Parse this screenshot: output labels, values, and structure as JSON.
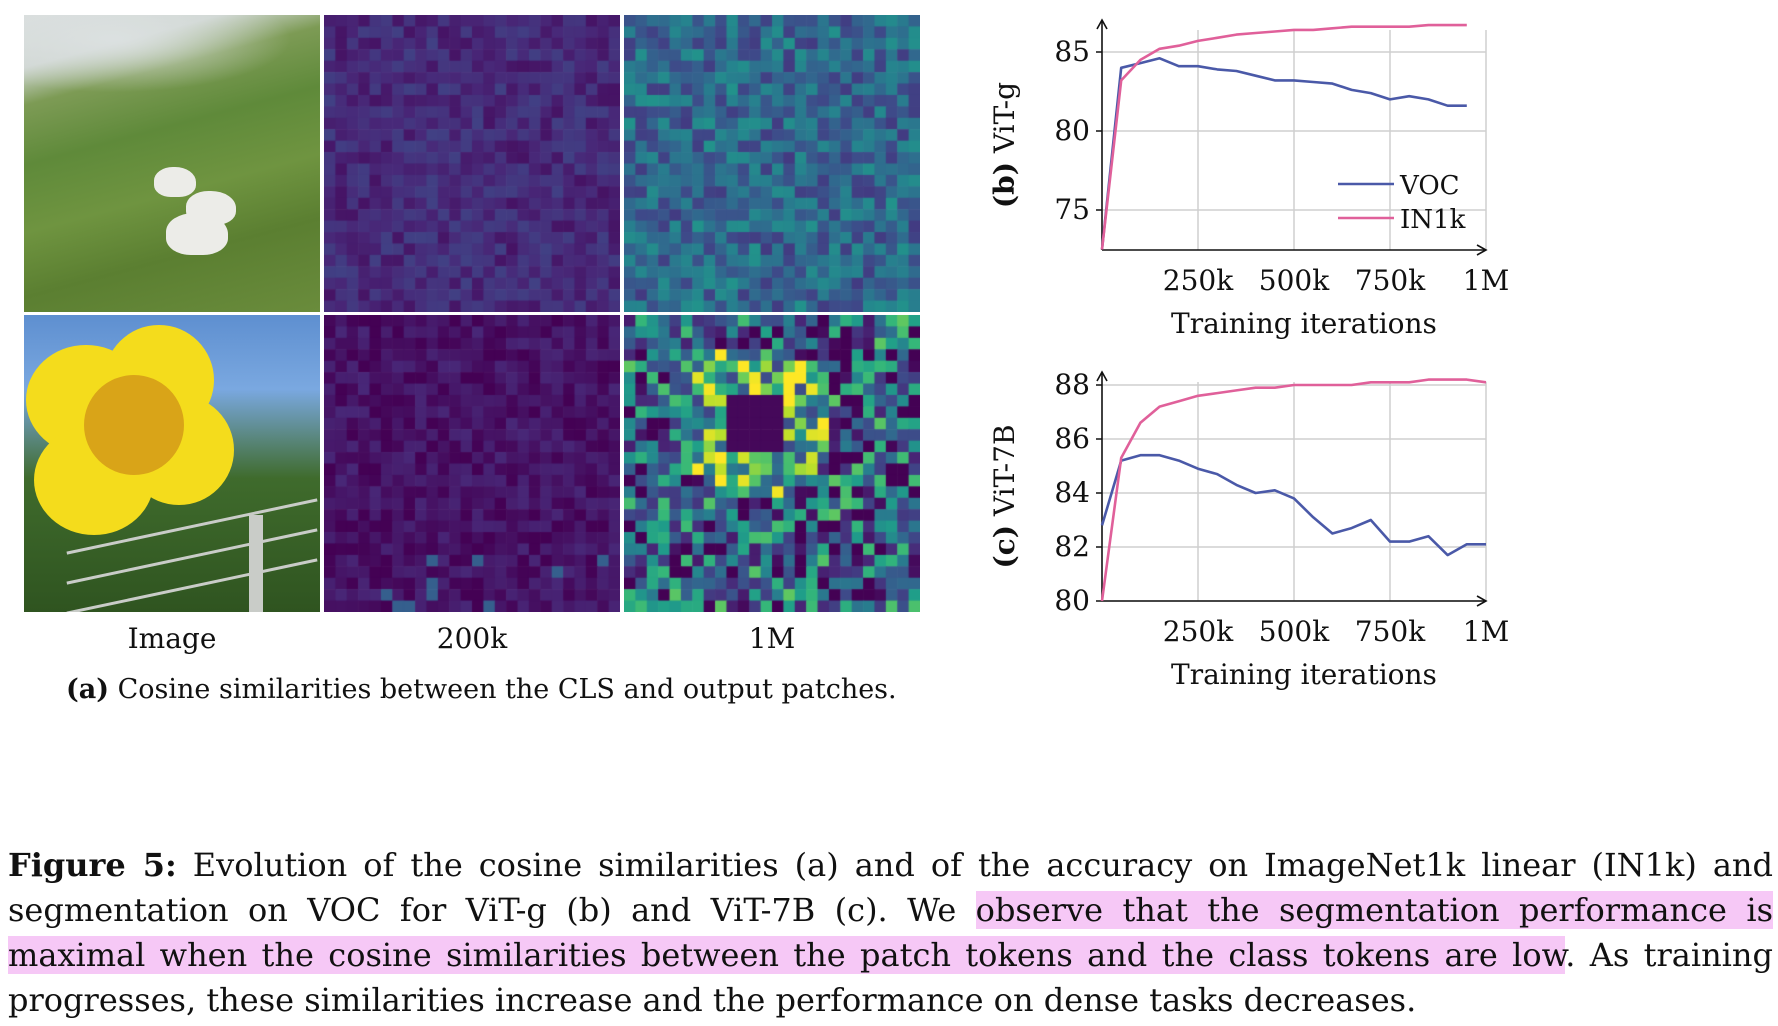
{
  "panel_a": {
    "column_labels": [
      "Image",
      "200k",
      "1M"
    ],
    "caption_label": "(a)",
    "caption_text": " Cosine similarities between the CLS and output patches."
  },
  "chart_data": [
    {
      "type": "line",
      "panel": "(b)",
      "ylabel": "ViT-g",
      "xlabel": "Training iterations",
      "x_ticks": [
        "250k",
        "500k",
        "750k",
        "1M"
      ],
      "y_ticks": [
        75,
        80,
        85
      ],
      "xlim": [
        0,
        1000000
      ],
      "ylim": [
        72.5,
        87.5
      ],
      "grid": true,
      "legend_position": "bottom-right",
      "series": [
        {
          "name": "VOC",
          "color": "#4a59a8",
          "x": [
            0,
            50000,
            100000,
            150000,
            200000,
            250000,
            300000,
            350000,
            400000,
            450000,
            500000,
            550000,
            600000,
            650000,
            700000,
            750000,
            800000,
            850000,
            900000,
            950000
          ],
          "y": [
            72.5,
            84.0,
            84.3,
            84.6,
            84.1,
            84.1,
            83.9,
            83.8,
            83.5,
            83.2,
            83.2,
            83.1,
            83.0,
            82.6,
            82.4,
            82.0,
            82.2,
            82.0,
            81.6,
            81.6
          ]
        },
        {
          "name": "IN1k",
          "color": "#e0609a",
          "x": [
            0,
            50000,
            100000,
            150000,
            200000,
            250000,
            300000,
            350000,
            400000,
            450000,
            500000,
            550000,
            600000,
            650000,
            700000,
            750000,
            800000,
            850000,
            900000,
            950000
          ],
          "y": [
            72.5,
            83.2,
            84.5,
            85.2,
            85.4,
            85.7,
            85.9,
            86.1,
            86.2,
            86.3,
            86.4,
            86.4,
            86.5,
            86.6,
            86.6,
            86.6,
            86.6,
            86.7,
            86.7,
            86.7
          ]
        }
      ]
    },
    {
      "type": "line",
      "panel": "(c)",
      "ylabel": "ViT-7B",
      "xlabel": "Training iterations",
      "x_ticks": [
        "250k",
        "500k",
        "750k",
        "1M"
      ],
      "y_ticks": [
        80,
        82,
        84,
        86,
        88
      ],
      "xlim": [
        0,
        1000000
      ],
      "ylim": [
        80,
        88.5
      ],
      "grid": true,
      "series": [
        {
          "name": "VOC",
          "color": "#4a59a8",
          "x": [
            0,
            50000,
            100000,
            150000,
            200000,
            250000,
            300000,
            350000,
            400000,
            450000,
            500000,
            550000,
            600000,
            650000,
            700000,
            750000,
            800000,
            850000,
            900000,
            950000,
            1000000
          ],
          "y": [
            82.8,
            85.2,
            85.4,
            85.4,
            85.2,
            84.9,
            84.7,
            84.3,
            84.0,
            84.1,
            83.8,
            83.1,
            82.5,
            82.7,
            83.0,
            82.2,
            82.2,
            82.4,
            81.7,
            82.1,
            82.1
          ]
        },
        {
          "name": "IN1k",
          "color": "#e0609a",
          "x": [
            0,
            50000,
            100000,
            150000,
            200000,
            250000,
            300000,
            350000,
            400000,
            450000,
            500000,
            550000,
            600000,
            650000,
            700000,
            750000,
            800000,
            850000,
            900000,
            950000,
            1000000
          ],
          "y": [
            80.0,
            85.3,
            86.6,
            87.2,
            87.4,
            87.6,
            87.7,
            87.8,
            87.9,
            87.9,
            88.0,
            88.0,
            88.0,
            88.0,
            88.1,
            88.1,
            88.1,
            88.2,
            88.2,
            88.2,
            88.1
          ]
        }
      ]
    }
  ],
  "figure_caption": {
    "lines": [
      {
        "parts": [
          {
            "text": "Figure 5:",
            "bold": true
          },
          {
            "text": "  Evolution of the cosine similarities (a) and of the accuracy on ImageNet1k linear (IN1k) and"
          }
        ]
      },
      {
        "parts": [
          {
            "text": "segmentation on VOC for ViT-g (b) and ViT-7B (c).  We "
          },
          {
            "text": "observe that the segmentation performance is",
            "highlight": true
          }
        ]
      },
      {
        "parts": [
          {
            "text": "maximal when the cosine similarities between the patch tokens and the class tokens are low",
            "highlight": true
          },
          {
            "text": ".  As training"
          }
        ]
      },
      {
        "parts": [
          {
            "text": "progresses, these similarities increase and the performance on dense tasks decreases."
          }
        ]
      }
    ]
  },
  "colors": {
    "voc": "#4a59a8",
    "in1k": "#e0609a",
    "highlight": "#f6c8f6"
  }
}
